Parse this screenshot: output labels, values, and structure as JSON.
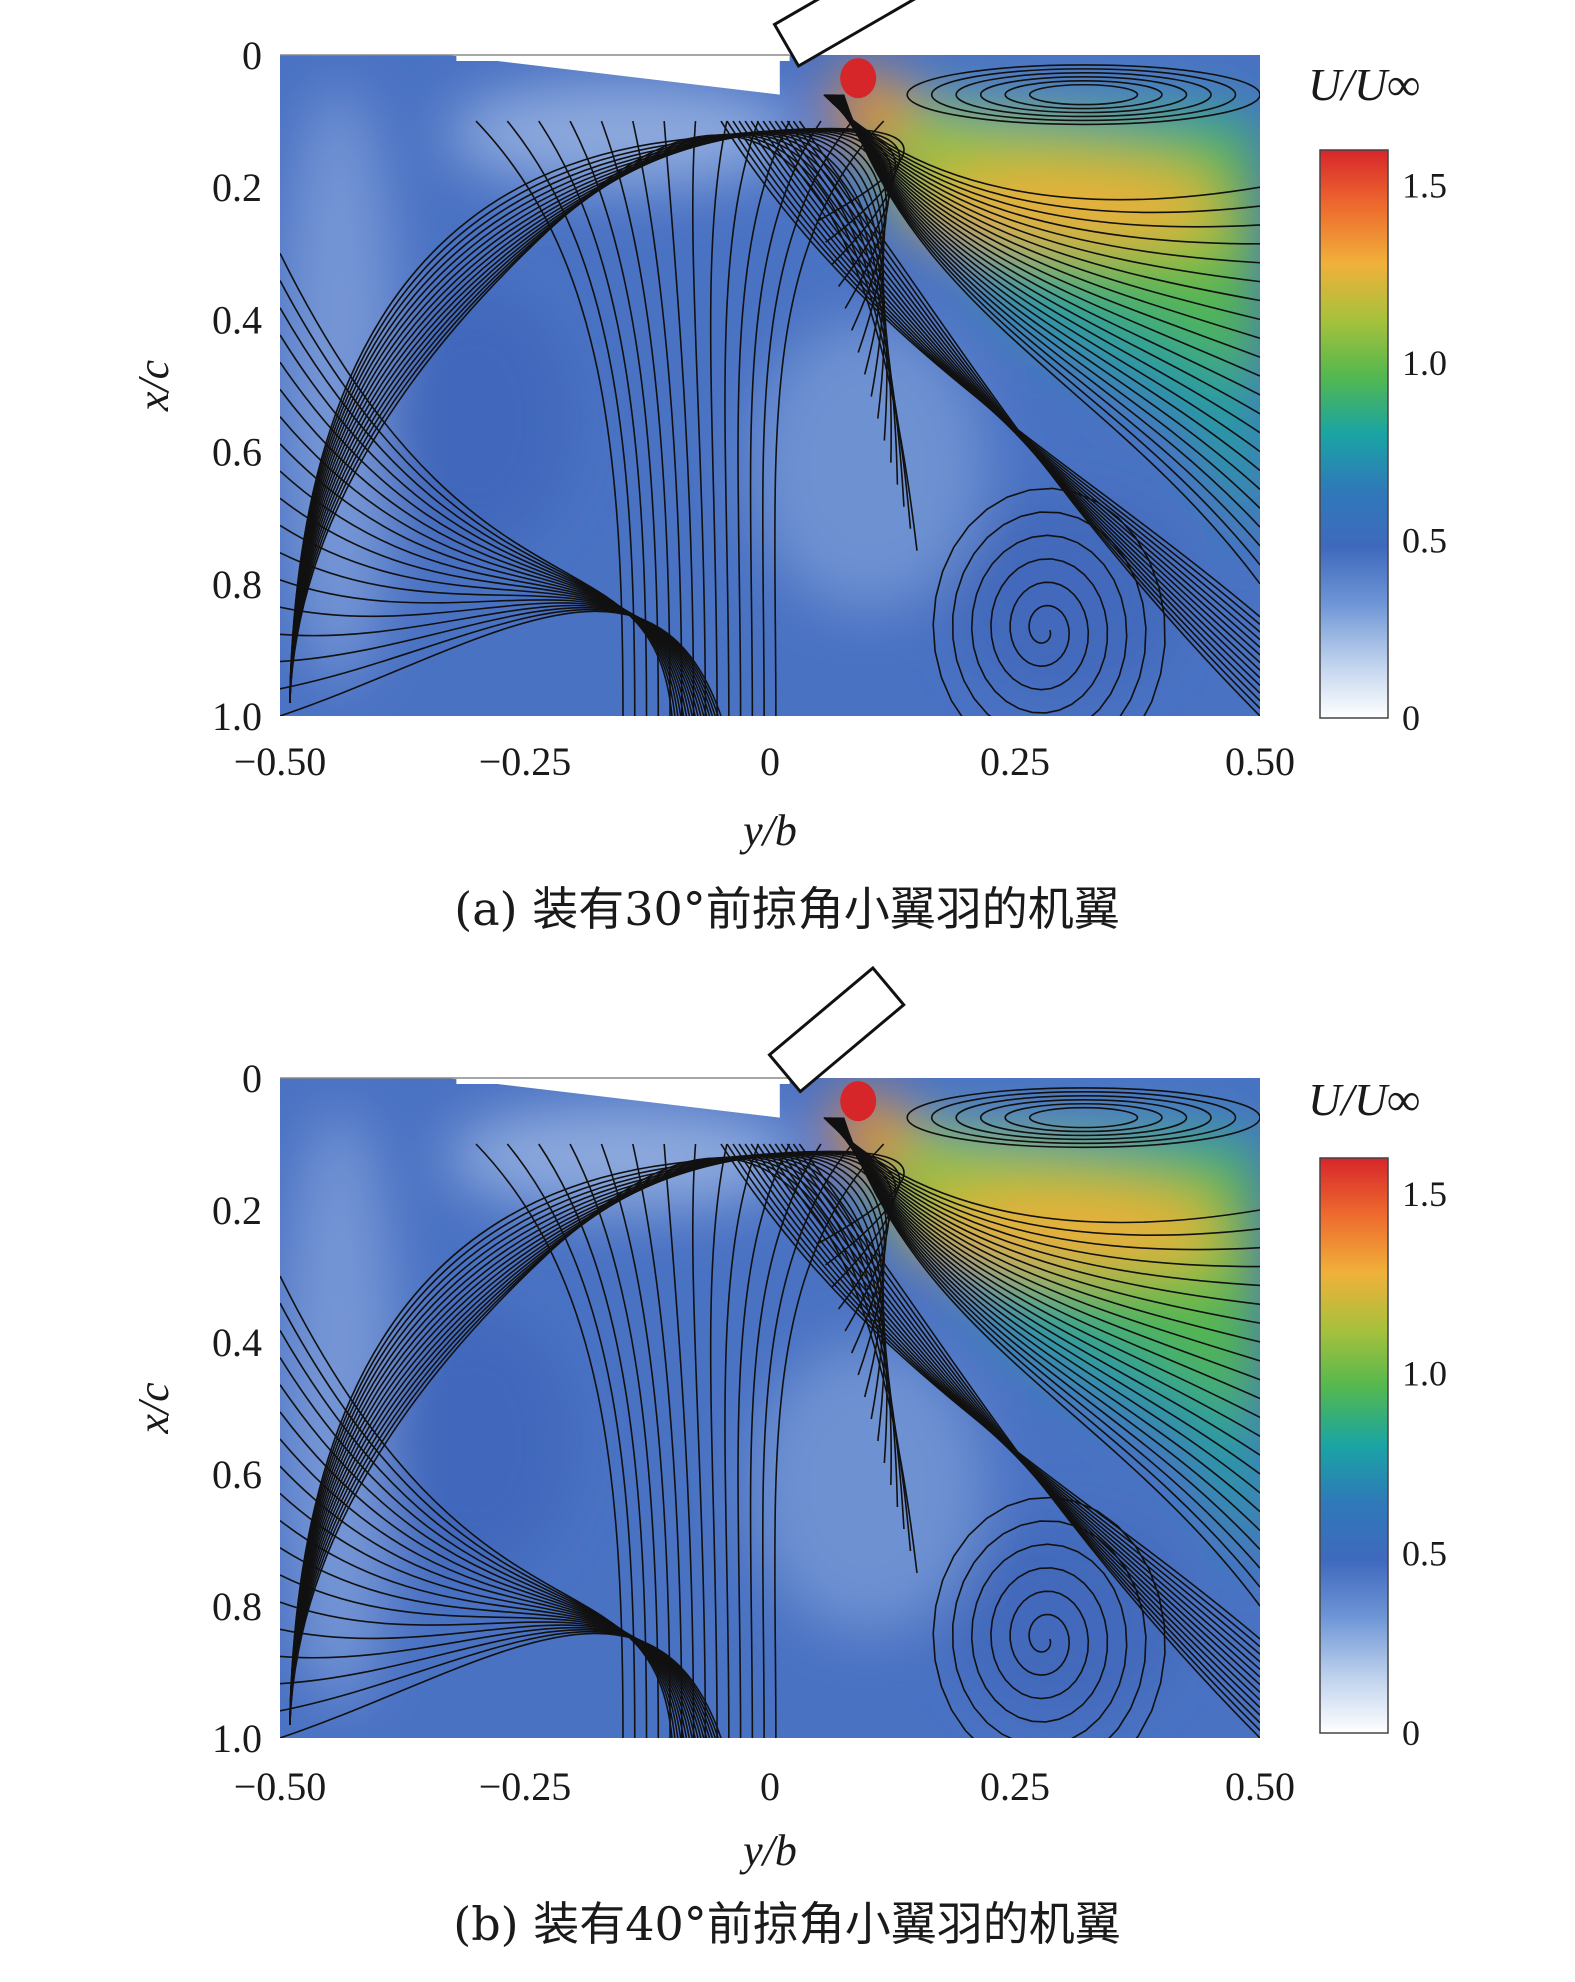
{
  "chart_data": [
    {
      "type": "heatmap",
      "subtype": "velocity-magnitude contour with streamlines",
      "caption": "(a) 装有30°前掠角小翼羽的机翼",
      "xlabel": "y/b",
      "ylabel": "x/c",
      "xlim": [
        -0.5,
        0.5
      ],
      "ylim": [
        0,
        1.0
      ],
      "y_inverted": true,
      "x_ticks": [
        "−0.50",
        "−0.25",
        "0",
        "0.25",
        "0.50"
      ],
      "y_ticks": [
        "0",
        "0.2",
        "0.4",
        "0.6",
        "0.8",
        "1.0"
      ],
      "colorbar": {
        "title": "U/U∞",
        "range": [
          0,
          1.6
        ],
        "ticks": [
          "0",
          "0.5",
          "1.0",
          "1.5"
        ],
        "colormap": [
          "#ffffff",
          "#bcd0ec",
          "#6f96d6",
          "#3f69bd",
          "#2f79b9",
          "#1aa4a4",
          "#52b84f",
          "#a6c13c",
          "#f0b13a",
          "#ee6b2e",
          "#d7262a"
        ]
      },
      "winglet_sweep_deg": 30,
      "features": [
        {
          "label": "high-speed jet",
          "y": 0.32,
          "x": 0.24,
          "U": 1.4
        },
        {
          "label": "peak",
          "y": 0.09,
          "x": 0.03,
          "U": 1.6
        },
        {
          "label": "vortex center",
          "y": 0.28,
          "x": 0.87
        }
      ]
    },
    {
      "type": "heatmap",
      "subtype": "velocity-magnitude contour with streamlines",
      "caption": "(b) 装有40°前掠角小翼羽的机翼",
      "xlabel": "y/b",
      "ylabel": "x/c",
      "xlim": [
        -0.5,
        0.5
      ],
      "ylim": [
        0,
        1.0
      ],
      "y_inverted": true,
      "x_ticks": [
        "−0.50",
        "−0.25",
        "0",
        "0.25",
        "0.50"
      ],
      "y_ticks": [
        "0",
        "0.2",
        "0.4",
        "0.6",
        "0.8",
        "1.0"
      ],
      "colorbar": {
        "title": "U/U∞",
        "range": [
          0,
          1.6
        ],
        "ticks": [
          "0",
          "0.5",
          "1.0",
          "1.5"
        ],
        "colormap": [
          "#ffffff",
          "#bcd0ec",
          "#6f96d6",
          "#3f69bd",
          "#2f79b9",
          "#1aa4a4",
          "#52b84f",
          "#a6c13c",
          "#f0b13a",
          "#ee6b2e",
          "#d7262a"
        ]
      },
      "winglet_sweep_deg": 40,
      "features": [
        {
          "label": "high-speed jet",
          "y": 0.3,
          "x": 0.23,
          "U": 1.35
        },
        {
          "label": "peak",
          "y": 0.09,
          "x": 0.03,
          "U": 1.6
        },
        {
          "label": "vortex center",
          "y": 0.28,
          "x": 0.85
        }
      ]
    }
  ]
}
